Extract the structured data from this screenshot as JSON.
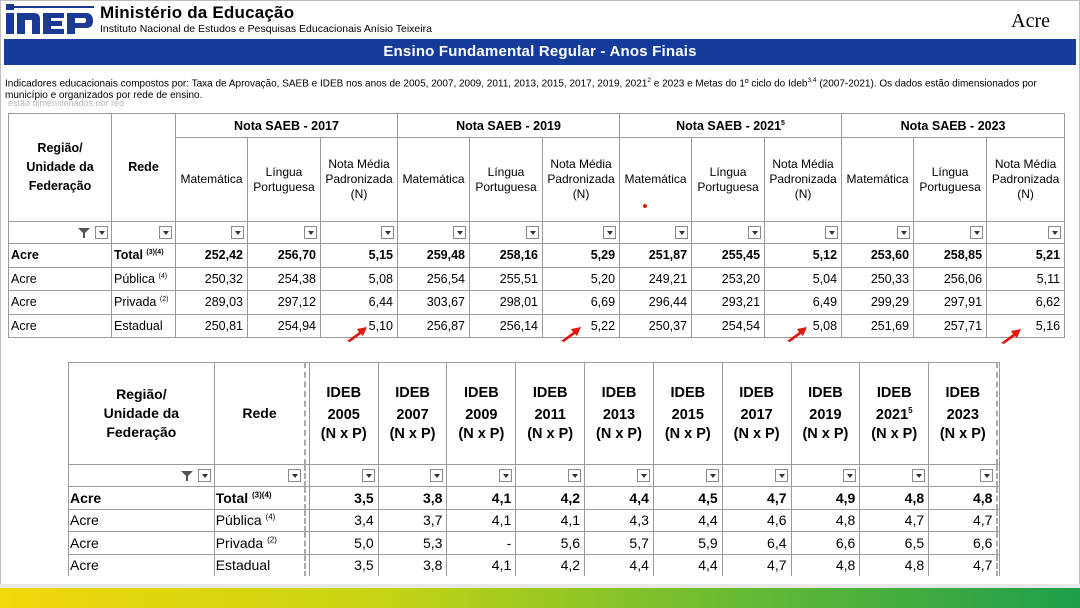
{
  "header": {
    "logo_text": "inep",
    "ministry": "Ministério da Educação",
    "institute": "Instituto Nacional de Estudos e Pesquisas Educacionais Anísio Teixeira",
    "state": "Acre",
    "title": "Ensino Fundamental Regular - Anos Finais",
    "description_a": "Indicadores educacionais compostos por: Taxa de Aprovação, SAEB e IDEB nos anos de 2005, 2007, 2009, 2011, 2013, 2015, 2017, 2019, 2021",
    "description_sup1": "2",
    "description_b": " e 2023 e Metas do 1º ciclo do Ideb",
    "description_sup2": "3,4",
    "description_c": " (2007-2021). Os dados estão dimensionados por município e organizados por rede de ensino.",
    "description_ghost": "estão dimensionados por reg"
  },
  "saeb": {
    "region_header_1": "Região/",
    "region_header_2": "Unidade da",
    "region_header_3": "Federação",
    "rede_header": "Rede",
    "groups": [
      {
        "label": "Nota SAEB - 2017",
        "sup": ""
      },
      {
        "label": "Nota SAEB - 2019",
        "sup": ""
      },
      {
        "label": "Nota SAEB - 2021",
        "sup": "5"
      },
      {
        "label": "Nota SAEB - 2023",
        "sup": ""
      }
    ],
    "sub_mat": "Matemática",
    "sub_lp_1": "Língua",
    "sub_lp_2": "Portuguesa",
    "sub_nm_1": "Nota Média",
    "sub_nm_2": "Padronizada",
    "sub_nm_3": "(N)",
    "rows": [
      {
        "region": "Acre",
        "rede": "Total",
        "sup": "(3)(4)",
        "values": [
          "252,42",
          "256,70",
          "5,15",
          "259,48",
          "258,16",
          "5,29",
          "251,87",
          "255,45",
          "5,12",
          "253,60",
          "258,85",
          "5,21"
        ]
      },
      {
        "region": "Acre",
        "rede": "Pública",
        "sup": "(4)",
        "values": [
          "250,32",
          "254,38",
          "5,08",
          "256,54",
          "255,51",
          "5,20",
          "249,21",
          "253,20",
          "5,04",
          "250,33",
          "256,06",
          "5,11"
        ]
      },
      {
        "region": "Acre",
        "rede": "Privada",
        "sup": "(2)",
        "values": [
          "289,03",
          "297,12",
          "6,44",
          "303,67",
          "298,01",
          "6,69",
          "296,44",
          "293,21",
          "6,49",
          "299,29",
          "297,91",
          "6,62"
        ]
      },
      {
        "region": "Acre",
        "rede": "Estadual",
        "sup": "",
        "values": [
          "250,81",
          "254,94",
          "5,10",
          "256,87",
          "256,14",
          "5,22",
          "250,37",
          "254,54",
          "5,08",
          "251,69",
          "257,71",
          "5,16"
        ]
      }
    ]
  },
  "ideb": {
    "region_header_1": "Região/",
    "region_header_2": "Unidade da",
    "region_header_3": "Federação",
    "rede_header": "Rede",
    "ideb_label": "IDEB",
    "nxp_label": "(N x P)",
    "years": [
      {
        "year": "2005",
        "sup": ""
      },
      {
        "year": "2007",
        "sup": ""
      },
      {
        "year": "2009",
        "sup": ""
      },
      {
        "year": "2011",
        "sup": ""
      },
      {
        "year": "2013",
        "sup": ""
      },
      {
        "year": "2015",
        "sup": ""
      },
      {
        "year": "2017",
        "sup": ""
      },
      {
        "year": "2019",
        "sup": ""
      },
      {
        "year": "2021",
        "sup": "5"
      },
      {
        "year": "2023",
        "sup": ""
      }
    ],
    "rows": [
      {
        "region": "Acre",
        "rede": "Total",
        "sup": "(3)(4)",
        "values": [
          "3,5",
          "3,8",
          "4,1",
          "4,2",
          "4,4",
          "4,5",
          "4,7",
          "4,9",
          "4,8",
          "4,8"
        ]
      },
      {
        "region": "Acre",
        "rede": "Pública",
        "sup": "(4)",
        "values": [
          "3,4",
          "3,7",
          "4,1",
          "4,1",
          "4,3",
          "4,4",
          "4,6",
          "4,8",
          "4,7",
          "4,7"
        ]
      },
      {
        "region": "Acre",
        "rede": "Privada",
        "sup": "(2)",
        "values": [
          "5,0",
          "5,3",
          "-",
          "5,6",
          "5,7",
          "5,9",
          "6,4",
          "6,6",
          "6,5",
          "6,6"
        ]
      },
      {
        "region": "Acre",
        "rede": "Estadual",
        "sup": "",
        "values": [
          "3,5",
          "3,8",
          "4,1",
          "4,2",
          "4,4",
          "4,4",
          "4,7",
          "4,8",
          "4,8",
          "4,7"
        ]
      }
    ]
  },
  "colors": {
    "title_bar": "#143c9b",
    "logo_blue": "#1a3a95",
    "arrow_red": "#e4170e"
  }
}
